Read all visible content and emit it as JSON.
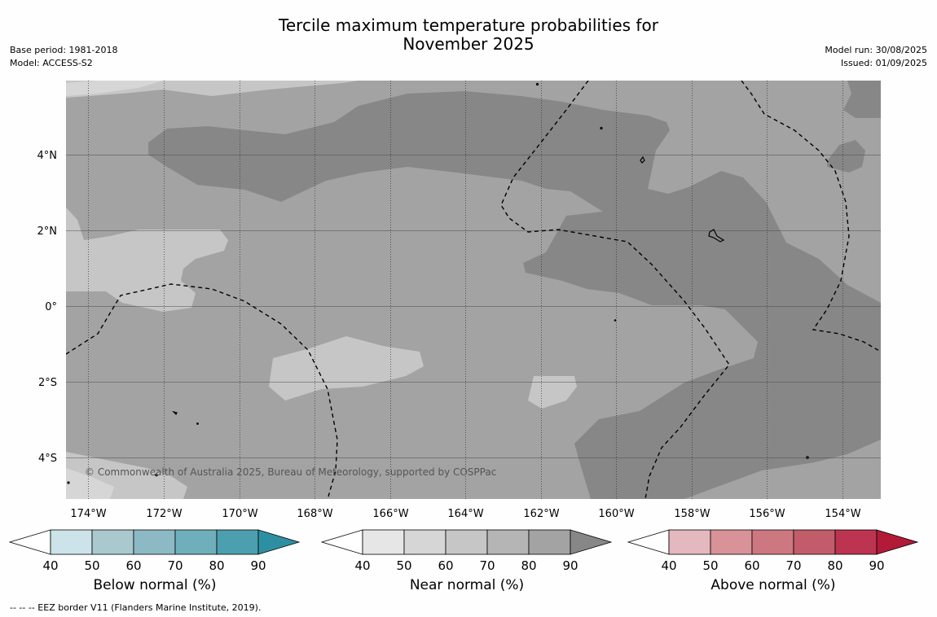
{
  "title_line1": "Tercile maximum temperature probabilities for",
  "title_line2": "November 2025",
  "left_info": {
    "base_period": "Base period: 1981-2018",
    "model": "Model: ACCESS-S2"
  },
  "right_info": {
    "model_run": "Model run: 30/08/2025",
    "issued": "Issued: 01/09/2025"
  },
  "map": {
    "lat_labels": [
      "4°N",
      "2°N",
      "0°",
      "2°S",
      "4°S"
    ],
    "lon_labels": [
      "174°W",
      "172°W",
      "170°W",
      "168°W",
      "166°W",
      "164°W",
      "162°W",
      "160°W",
      "158°W",
      "156°W",
      "154°W"
    ],
    "copyright": "© Commonwealth of Australia 2025, Bureau of Meteorology, supported by COSPPac",
    "land_color": "#000000",
    "eez_line_style": "dashed"
  },
  "colorbars": [
    {
      "label": "Below normal (%)",
      "ticks": [
        "40",
        "50",
        "60",
        "70",
        "80",
        "90"
      ],
      "colors": [
        "#ffffff",
        "#cbe3e9",
        "#a9c9ce",
        "#8db9c5",
        "#6fafbc",
        "#4b9fae",
        "#2e8fa2"
      ]
    },
    {
      "label": "Near normal (%)",
      "ticks": [
        "40",
        "50",
        "60",
        "70",
        "80",
        "90"
      ],
      "colors": [
        "#ffffff",
        "#e6e6e6",
        "#d6d6d6",
        "#c6c6c6",
        "#b5b5b5",
        "#a3a3a3",
        "#878787"
      ]
    },
    {
      "label": "Above normal (%)",
      "ticks": [
        "40",
        "50",
        "60",
        "70",
        "80",
        "90"
      ],
      "colors": [
        "#ffffff",
        "#e3b8be",
        "#d89298",
        "#cd7780",
        "#c25c6a",
        "#bc3450",
        "#b21a38"
      ]
    }
  ],
  "footer": "--  --  -- EEZ border V11 (Flanders Marine Institute, 2019)."
}
